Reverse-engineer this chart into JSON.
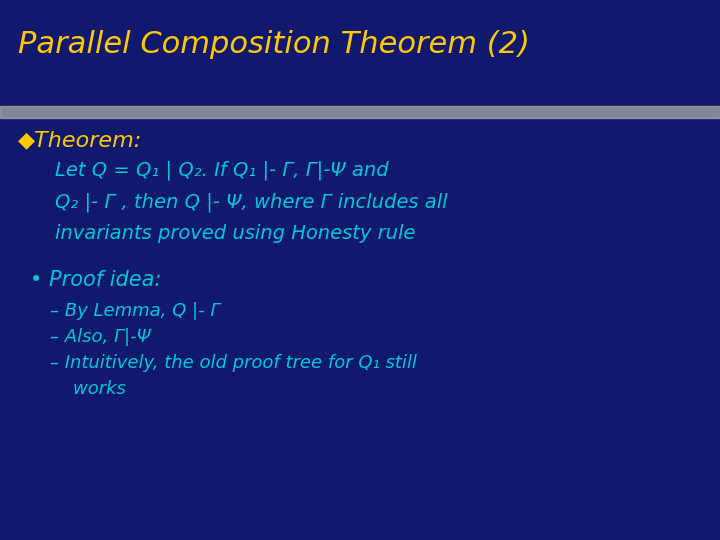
{
  "background_color": "#10196e",
  "title": "Parallel Composition Theorem (2)",
  "title_color": "#ffc800",
  "title_fontsize": 22,
  "separator_color": "#aaaaaa",
  "theorem_label": "◆Theorem:",
  "theorem_label_color": "#ffc800",
  "theorem_label_fontsize": 16,
  "body_color": "#00c8d4",
  "body_fontsize": 14,
  "proof_label": "• Proof idea:",
  "proof_label_color": "#00c8d4",
  "proof_label_fontsize": 15,
  "sub_color": "#00c8d4",
  "sub_fontsize": 13,
  "line1": "Let Q = Q₁ | Q₂. If Q₁ |- Γ, Γ|-Ψ and",
  "line2": "Q₂ |- Γ , then Q |- Ψ, where Γ includes all",
  "line3": "invariants proved using Honesty rule",
  "sub1": "– By Lemma, Q |- Γ",
  "sub2": "– Also, Γ|-Ψ",
  "sub3": "– Intuitively, the old proof tree for Q₁ still",
  "sub4": "    works"
}
